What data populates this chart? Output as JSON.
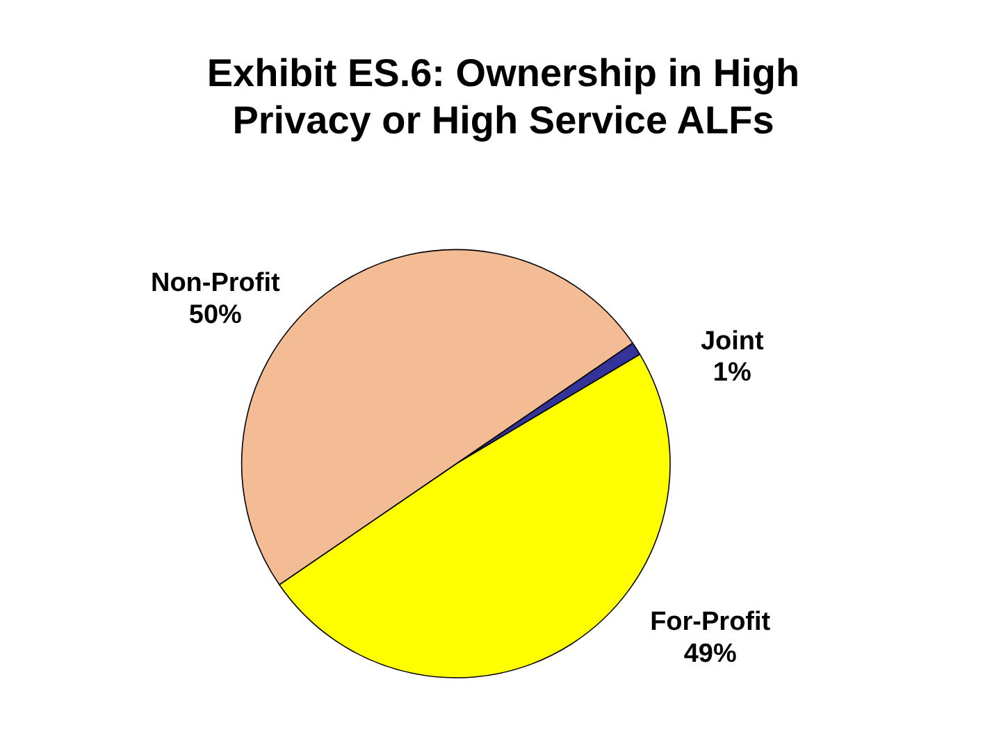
{
  "chart_data": {
    "type": "pie",
    "title": "Exhibit ES.6: Ownership in High Privacy or High Service ALFs",
    "categories": [
      "Joint",
      "For-Profit",
      "Non-Profit"
    ],
    "values": [
      1,
      49,
      50
    ],
    "colors": [
      "#333399",
      "#ffff00",
      "#f4bc94"
    ],
    "value_labels": [
      "1%",
      "49%",
      "50%"
    ]
  }
}
